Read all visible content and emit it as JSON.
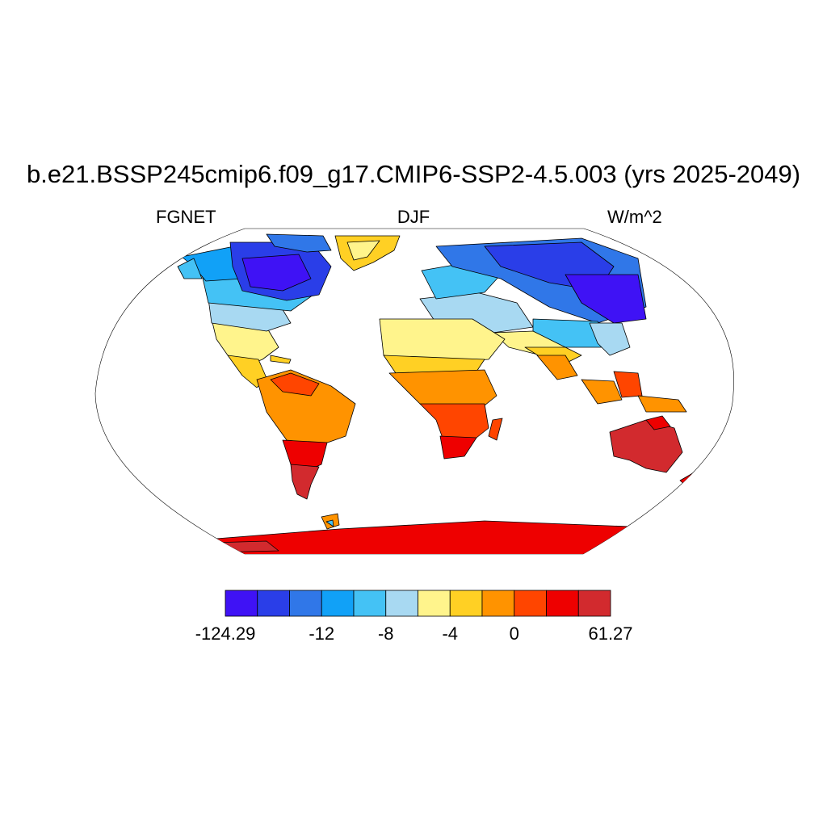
{
  "title": "b.e21.BSSP245cmip6.f09_g17.CMIP6-SSP2-4.5.003 (yrs 2025-2049)",
  "subtitle_left": "FGNET",
  "subtitle_center": "DJF",
  "subtitle_right": "W/m^2",
  "colorbar": {
    "colors": [
      "#3f12f5",
      "#2a3ee8",
      "#3077e8",
      "#11a1f7",
      "#44c2f5",
      "#a8d9f2",
      "#fff48c",
      "#ffd024",
      "#ff9300",
      "#ff4500",
      "#ee0000",
      "#d22a2e"
    ],
    "labels": [
      {
        "text": "-124.29",
        "edge": 0
      },
      {
        "text": "-12",
        "edge": 3
      },
      {
        "text": "-8",
        "edge": 5
      },
      {
        "text": "-4",
        "edge": 7
      },
      {
        "text": "0",
        "edge": 9
      },
      {
        "text": "61.27",
        "edge": 12
      }
    ]
  },
  "colors": {
    "frame": "#000000",
    "land_outline": "#000000"
  }
}
